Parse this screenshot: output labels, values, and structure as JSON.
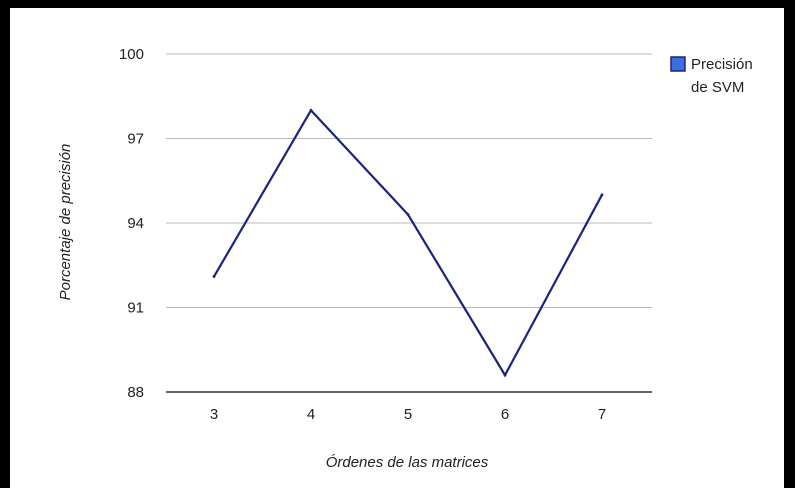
{
  "chart_data": {
    "type": "line",
    "title": "",
    "xlabel": "Órdenes de las matrices",
    "ylabel": "Porcentaje de precisión",
    "categories": [
      "3",
      "4",
      "5",
      "6",
      "7"
    ],
    "series": [
      {
        "name": "Precisión de SVM",
        "values": [
          92.1,
          98.0,
          94.3,
          88.6,
          95.0
        ]
      }
    ],
    "ylim": [
      88,
      100
    ],
    "yticks": [
      "88",
      "91",
      "94",
      "97",
      "100"
    ],
    "grid": true,
    "legend_position": "top-right",
    "legend_label_lines": [
      "Precisión",
      "de SVM"
    ],
    "colors": {
      "line": "#1a237e",
      "legend_swatch": "#3b6fe0",
      "grid": "#b8b8b8"
    }
  }
}
